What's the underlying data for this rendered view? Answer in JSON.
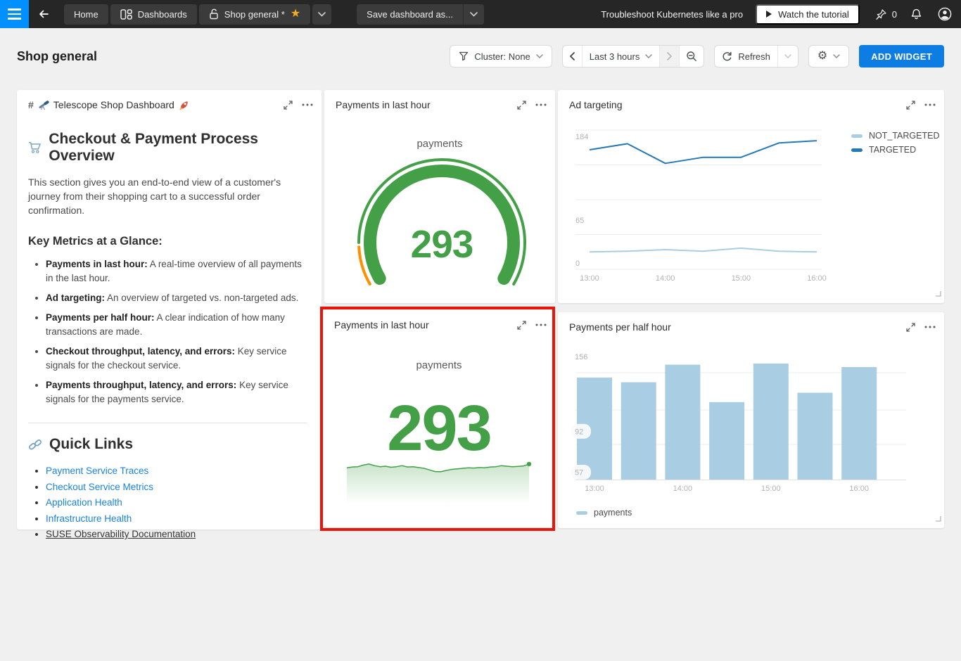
{
  "navbar": {
    "home_tab": "Home",
    "dashboards_tab": "Dashboards",
    "current_tab": "Shop general *",
    "save_as": "Save dashboard as...",
    "promo": "Troubleshoot Kubernetes like a pro",
    "watch_tutorial": "Watch the tutorial",
    "pin_count": "0"
  },
  "header": {
    "title": "Shop general",
    "cluster_filter": "Cluster: None",
    "time_range": "Last 3 hours",
    "refresh": "Refresh",
    "add_widget": "ADD WIDGET"
  },
  "colors": {
    "accent": "#0d7de4",
    "highlight_annotation": "#e8150b",
    "green": "#43a047",
    "orange": "#ff8f00",
    "light_blue": "#a9cde2",
    "dark_blue": "#2779b5",
    "link_blue": "#1a82e2"
  },
  "text_widget": {
    "title_prefix": "#",
    "title_telescope_emoji": "🔭",
    "title": "Telescope Shop Dashboard",
    "title_rocket_emoji": "🚀",
    "heading_cart_emoji": "🛒",
    "heading": "Checkout & Payment Process Overview",
    "intro": "This section gives you an end-to-end view of a customer's journey from their shopping cart to a successful order confirmation.",
    "metrics_heading": "Key Metrics at a Glance:",
    "metrics": [
      {
        "label": "Payments in last hour:",
        "text": " A real-time overview of all payments in the last hour."
      },
      {
        "label": "Ad targeting:",
        "text": " An overview of targeted vs. non-targeted ads."
      },
      {
        "label": "Payments per half hour:",
        "text": " A clear indication of how many transactions are made."
      },
      {
        "label": "Checkout throughput, latency, and errors:",
        "text": " Key service signals for the checkout service."
      },
      {
        "label": "Payments throughput, latency, and errors:",
        "text": " Key service signals for the payments service."
      }
    ],
    "quick_links_emoji": "🔗",
    "quick_links_heading": "Quick Links",
    "links": [
      {
        "label": "Payment Service Traces"
      },
      {
        "label": "Checkout Service Metrics"
      },
      {
        "label": "Application Health"
      },
      {
        "label": "Infrastructure Health"
      },
      {
        "label": "SUSE Observability Documentation"
      }
    ]
  },
  "chart_data": [
    {
      "type": "gauge",
      "title": "Payments in last hour",
      "series": "payments",
      "value": 293,
      "color": "#43a047",
      "warn_color": "#ff8f00",
      "start_angle": 210,
      "warn_end_angle": 183,
      "end_angle": -30
    },
    {
      "type": "line",
      "title": "Ad targeting",
      "x": [
        "13:00",
        "13:30",
        "14:00",
        "14:30",
        "15:00",
        "15:30",
        "16:00"
      ],
      "x_ticks": [
        "13:00",
        "14:00",
        "15:00",
        "16:00"
      ],
      "y_ticks": [
        184,
        65,
        0
      ],
      "ylim": [
        0,
        184
      ],
      "series": [
        {
          "name": "NOT_TARGETED",
          "color": "#a9cde2",
          "values": [
            23,
            24,
            26,
            24,
            28,
            24,
            23
          ]
        },
        {
          "name": "TARGETED",
          "color": "#2779b5",
          "values": [
            158,
            166,
            140,
            148,
            148,
            167,
            170
          ]
        }
      ],
      "legend_position": "right"
    },
    {
      "type": "area",
      "title": "Payments in last hour",
      "series": "payments",
      "value": 293,
      "color": "#43a047",
      "sparkline": [
        0.52,
        0.55,
        0.56,
        0.62,
        0.66,
        0.6,
        0.56,
        0.58,
        0.54,
        0.56,
        0.6,
        0.55,
        0.56,
        0.53,
        0.5,
        0.44,
        0.38,
        0.37,
        0.42,
        0.46,
        0.48,
        0.5,
        0.52,
        0.51,
        0.53,
        0.52,
        0.55,
        0.56,
        0.6,
        0.58,
        0.56,
        0.57,
        0.59,
        0.66
      ]
    },
    {
      "type": "bar",
      "title": "Payments per half hour",
      "categories": [
        "13:00",
        "13:30",
        "14:00",
        "14:30",
        "15:00",
        "15:30",
        "16:00"
      ],
      "values": [
        138,
        134,
        149,
        117,
        150,
        125,
        147
      ],
      "x_ticks": [
        "13:00",
        "14:00",
        "15:00",
        "16:00"
      ],
      "y_ticks": [
        156,
        92,
        57
      ],
      "ylim": [
        50,
        164
      ],
      "color": "#a9cde2",
      "legend": "payments",
      "legend_position": "bottom"
    }
  ]
}
